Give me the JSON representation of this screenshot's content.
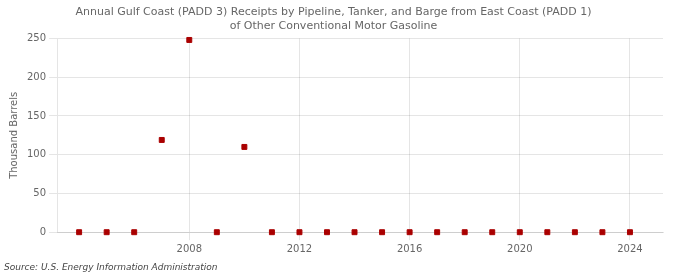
{
  "chart_data": {
    "type": "scatter",
    "title": "Annual Gulf Coast (PADD 3) Receipts by Pipeline, Tanker, and Barge from East Coast (PADD 1)\nof Other Conventional Motor Gasoline",
    "ylabel": "Thousand Barrels",
    "source": "Source: U.S. Energy Information Administration",
    "x": [
      2004,
      2005,
      2006,
      2007,
      2008,
      2009,
      2010,
      2011,
      2012,
      2013,
      2014,
      2015,
      2016,
      2017,
      2018,
      2019,
      2020,
      2021,
      2022,
      2023,
      2024
    ],
    "values": [
      0,
      0,
      0,
      119,
      248,
      0,
      110,
      0,
      0,
      0,
      0,
      0,
      0,
      0,
      0,
      0,
      0,
      0,
      0,
      0,
      0
    ],
    "color": "#aa0000",
    "marker": "square",
    "xlim": [
      2003.2,
      2025.2
    ],
    "xticks": [
      2008,
      2012,
      2016,
      2020,
      2024
    ],
    "ylim": [
      0,
      250
    ],
    "yticks": [
      0,
      50,
      100,
      150,
      200,
      250
    ],
    "grid": true
  }
}
